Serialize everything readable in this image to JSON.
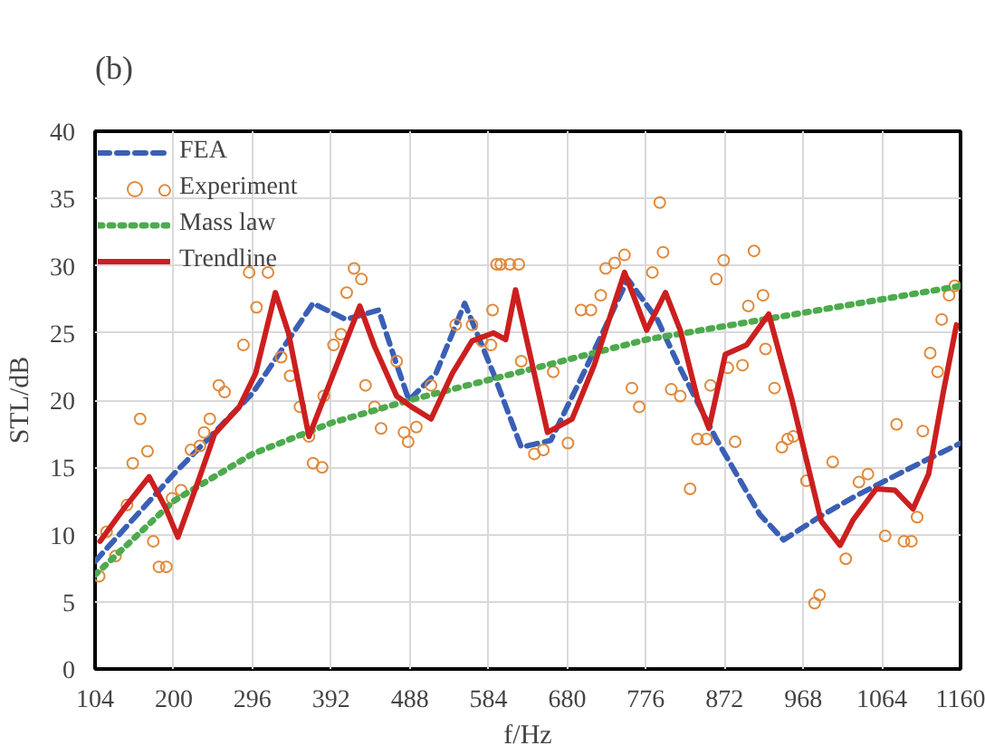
{
  "chart_data": {
    "type": "line",
    "xlabel": "f/Hz",
    "ylabel": "STL/dB",
    "annotations": [
      "(b)"
    ],
    "xlim": [
      104,
      1160
    ],
    "ylim": [
      0,
      40
    ],
    "xticks": [
      104,
      200,
      296,
      392,
      488,
      584,
      680,
      776,
      872,
      968,
      1064,
      1160
    ],
    "yticks": [
      0,
      5,
      10,
      15,
      20,
      25,
      30,
      35,
      40
    ],
    "grid": true,
    "legend": "top left",
    "series": [
      {
        "name": "FEA",
        "line_style": "dashed",
        "color": "#3a5fb5",
        "x": [
          104,
          200,
          296,
          370,
          410,
          450,
          470,
          487,
          520,
          555,
          590,
          624,
          660,
          700,
          754,
          790,
          816,
          862,
          915,
          944,
          990,
          1030,
          1068,
          1110,
          1160
        ],
        "values": [
          8,
          14.5,
          20.5,
          27.2,
          26,
          26.7,
          23,
          20,
          22,
          27.2,
          22,
          16.5,
          17,
          22,
          29,
          26,
          22.6,
          17.1,
          11.5,
          9.6,
          11.4,
          12.8,
          14,
          15.3,
          16.8
        ]
      },
      {
        "name": "Experiment",
        "type": "scatter",
        "marker": "circle",
        "color": "#e08a3c",
        "x": [
          109,
          118,
          129,
          143,
          150,
          159,
          168,
          175,
          182,
          191,
          189,
          198,
          209,
          221,
          232,
          237,
          244,
          255,
          262,
          285,
          292,
          301,
          315,
          331,
          342,
          354,
          365,
          370,
          381,
          383,
          395,
          404,
          411,
          420,
          429,
          434,
          445,
          453,
          472,
          481,
          486,
          496,
          514,
          544,
          564,
          576,
          594,
          589,
          599,
          610,
          621,
          587,
          624,
          663,
          640,
          651,
          681,
          697,
          709,
          721,
          727,
          738,
          750,
          759,
          768,
          784,
          793,
          797,
          807,
          818,
          830,
          839,
          850,
          855,
          862,
          871,
          876,
          885,
          894,
          901,
          908,
          919,
          922,
          933,
          942,
          949,
          956,
          972,
          988,
          982,
          1004,
          1020,
          1036,
          1047,
          1068,
          1082,
          1091,
          1100,
          1107,
          1114,
          1123,
          1132,
          1137,
          1146,
          1153
        ],
        "values": [
          6.9,
          10.2,
          8.4,
          12.2,
          15.3,
          18.6,
          16.2,
          9.5,
          7.6,
          7.6,
          35.6,
          12.7,
          13.3,
          16.3,
          16.6,
          17.6,
          18.6,
          21.1,
          20.6,
          24.1,
          29.5,
          26.9,
          29.5,
          23.2,
          21.8,
          19.5,
          17.3,
          15.3,
          15,
          20.3,
          24.1,
          24.9,
          28,
          29.8,
          29,
          21.1,
          19.5,
          17.9,
          22.9,
          17.6,
          16.9,
          18,
          21.1,
          25.6,
          25.6,
          24.4,
          30.1,
          26.7,
          30.1,
          30.1,
          30.1,
          24.1,
          22.9,
          22.1,
          16,
          16.3,
          16.8,
          26.7,
          26.7,
          27.8,
          29.8,
          30.2,
          30.8,
          20.9,
          19.5,
          29.5,
          34.7,
          31,
          20.8,
          20.3,
          13.4,
          17.1,
          17.1,
          21.1,
          29,
          30.4,
          22.4,
          16.9,
          22.6,
          27,
          31.1,
          27.8,
          23.8,
          20.9,
          16.5,
          17.1,
          17.3,
          14,
          5.5,
          4.9,
          15.4,
          8.2,
          13.9,
          14.5,
          9.9,
          18.2,
          9.5,
          9.5,
          11.3,
          17.7,
          23.5,
          22.1,
          26,
          27.8,
          28.5
        ]
      },
      {
        "name": "Mass law",
        "line_style": "dotted",
        "color": "#4daa4d",
        "x": [
          104,
          200,
          296,
          392,
          488,
          584,
          680,
          776,
          872,
          968,
          1064,
          1160
        ],
        "values": [
          7,
          12.5,
          16,
          18.3,
          20,
          21.5,
          23,
          24.5,
          25.5,
          26.5,
          27.5,
          28.5
        ]
      },
      {
        "name": "Trendline",
        "line_style": "solid",
        "color": "#cc1f1f",
        "x": [
          110,
          140,
          170,
          190,
          205,
          230,
          250,
          280,
          300,
          324,
          340,
          365,
          395,
          427,
          445,
          472,
          490,
          514,
          540,
          564,
          590,
          605,
          617,
          656,
          686,
          713,
          750,
          777,
          800,
          818,
          839,
          853,
          873,
          899,
          926,
          954,
          990,
          1013,
          1029,
          1057,
          1080,
          1102,
          1121,
          1139,
          1155
        ],
        "values": [
          9.5,
          12,
          14.3,
          12,
          9.8,
          14,
          17.5,
          19.5,
          22,
          28,
          25,
          17.3,
          22,
          27,
          24,
          20.3,
          19.5,
          18.6,
          22,
          24.4,
          25,
          24.5,
          28.2,
          17.6,
          18.6,
          22.6,
          29.5,
          25.2,
          28,
          25.2,
          20.1,
          17.9,
          23.4,
          24.1,
          26.4,
          20.1,
          11,
          9.2,
          11.1,
          13.4,
          13.3,
          11.9,
          14.5,
          20.6,
          25.6
        ]
      }
    ]
  }
}
